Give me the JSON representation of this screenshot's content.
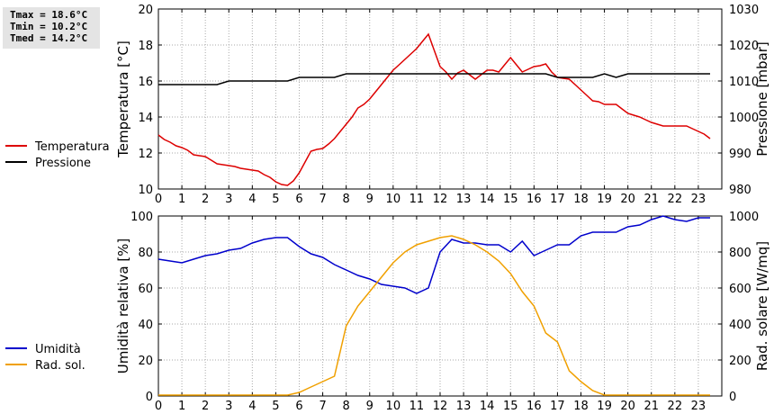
{
  "stats": {
    "tmax": "Tmax = 18.6°C",
    "tmin": "Tmin = 10.2°C",
    "tmed": "Tmed = 14.2°C"
  },
  "chart_data": [
    {
      "type": "line",
      "xlabel": "",
      "ylabel": "Temperatura [°C]",
      "y2label": "Pressione [mbar]",
      "xlim": [
        0,
        24
      ],
      "ylim": [
        10,
        20
      ],
      "y2lim": [
        980,
        1030
      ],
      "x_ticks": [
        0,
        1,
        2,
        3,
        4,
        5,
        6,
        7,
        8,
        9,
        10,
        11,
        12,
        13,
        14,
        15,
        16,
        17,
        18,
        19,
        20,
        21,
        22,
        23
      ],
      "y_ticks": [
        10,
        12,
        14,
        16,
        18,
        20
      ],
      "y2_ticks": [
        980,
        990,
        1000,
        1010,
        1020,
        1030
      ],
      "grid": true,
      "legend": "left",
      "series": [
        {
          "name": "Temperatura",
          "axis": "left",
          "color": "#dd0000",
          "x": [
            0,
            0.25,
            0.5,
            0.75,
            1,
            1.25,
            1.5,
            1.75,
            2,
            2.25,
            2.5,
            2.75,
            3,
            3.25,
            3.5,
            3.75,
            4,
            4.25,
            4.5,
            4.75,
            5,
            5.25,
            5.5,
            5.75,
            6,
            6.25,
            6.5,
            6.75,
            7,
            7.25,
            7.5,
            7.75,
            8,
            8.25,
            8.5,
            8.75,
            9,
            9.25,
            9.5,
            9.75,
            10,
            10.25,
            10.5,
            10.75,
            11,
            11.25,
            11.5,
            11.75,
            12,
            12.25,
            12.5,
            12.75,
            13,
            13.25,
            13.5,
            13.75,
            14,
            14.25,
            14.5,
            14.75,
            15,
            15.25,
            15.5,
            15.75,
            16,
            16.25,
            16.5,
            16.75,
            17,
            17.25,
            17.5,
            17.75,
            18,
            18.25,
            18.5,
            18.75,
            19,
            19.25,
            19.5,
            19.75,
            20,
            20.25,
            20.5,
            20.75,
            21,
            21.25,
            21.5,
            21.75,
            22,
            22.25,
            22.5,
            22.75,
            23,
            23.25,
            23.5
          ],
          "y": [
            13.0,
            12.75,
            12.6,
            12.4,
            12.3,
            12.15,
            11.9,
            11.85,
            11.8,
            11.6,
            11.4,
            11.35,
            11.3,
            11.25,
            11.15,
            11.1,
            11.05,
            11.0,
            10.8,
            10.65,
            10.4,
            10.25,
            10.2,
            10.45,
            10.9,
            11.5,
            12.1,
            12.2,
            12.25,
            12.5,
            12.8,
            13.2,
            13.6,
            14.0,
            14.5,
            14.7,
            15.0,
            15.4,
            15.8,
            16.2,
            16.6,
            16.9,
            17.2,
            17.5,
            17.8,
            18.2,
            18.6,
            17.7,
            16.8,
            16.5,
            16.1,
            16.45,
            16.6,
            16.35,
            16.1,
            16.35,
            16.6,
            16.6,
            16.5,
            16.9,
            17.3,
            16.9,
            16.5,
            16.65,
            16.8,
            16.85,
            16.95,
            16.5,
            16.2,
            16.15,
            16.1,
            15.8,
            15.5,
            15.2,
            14.9,
            14.85,
            14.7,
            14.7,
            14.7,
            14.45,
            14.2,
            14.1,
            14.0,
            13.85,
            13.7,
            13.6,
            13.5,
            13.5,
            13.5,
            13.5,
            13.5,
            13.35,
            13.2,
            13.05,
            12.8
          ],
          "x_note": ""
        },
        {
          "name": "Pressione",
          "axis": "right",
          "color": "#000000",
          "x": [
            0,
            0.5,
            1,
            1.5,
            2,
            2.5,
            3,
            3.5,
            4,
            4.5,
            5,
            5.5,
            6,
            6.5,
            7,
            7.5,
            8,
            8.5,
            9,
            9.5,
            10,
            10.5,
            11,
            11.5,
            12,
            12.5,
            13,
            13.5,
            14,
            14.5,
            15,
            15.5,
            16,
            16.5,
            17,
            17.5,
            18,
            18.5,
            19,
            19.5,
            20,
            20.5,
            21,
            21.5,
            22,
            22.5,
            23,
            23.5
          ],
          "y": [
            1009,
            1009,
            1009,
            1009,
            1009,
            1009,
            1010,
            1010,
            1010,
            1010,
            1010,
            1010,
            1011,
            1011,
            1011,
            1011,
            1012,
            1012,
            1012,
            1012,
            1012,
            1012,
            1012,
            1012,
            1012,
            1012,
            1012,
            1012,
            1012,
            1012,
            1012,
            1012,
            1012,
            1012,
            1011,
            1011,
            1011,
            1011,
            1012,
            1011,
            1012,
            1012,
            1012,
            1012,
            1012,
            1012,
            1012,
            1012
          ]
        }
      ]
    },
    {
      "type": "line",
      "xlabel": "",
      "ylabel": "Umidità relativa [%]",
      "y2label": "Rad. solare [W/mq]",
      "xlim": [
        0,
        24
      ],
      "ylim": [
        0,
        100
      ],
      "y2lim": [
        0,
        1000
      ],
      "x_ticks": [
        0,
        1,
        2,
        3,
        4,
        5,
        6,
        7,
        8,
        9,
        10,
        11,
        12,
        13,
        14,
        15,
        16,
        17,
        18,
        19,
        20,
        21,
        22,
        23
      ],
      "y_ticks": [
        0,
        20,
        40,
        60,
        80,
        100
      ],
      "y2_ticks": [
        0,
        200,
        400,
        600,
        800,
        1000
      ],
      "grid": true,
      "legend": "left",
      "series": [
        {
          "name": "Umidità",
          "axis": "left",
          "color": "#0000cc",
          "x": [
            0,
            0.5,
            1,
            1.5,
            2,
            2.5,
            3,
            3.5,
            4,
            4.5,
            5,
            5.5,
            6,
            6.5,
            7,
            7.5,
            8,
            8.5,
            9,
            9.5,
            10,
            10.5,
            11,
            11.5,
            12,
            12.5,
            13,
            13.5,
            14,
            14.5,
            15,
            15.5,
            16,
            16.5,
            17,
            17.5,
            18,
            18.5,
            19,
            19.5,
            20,
            20.5,
            21,
            21.5,
            22,
            22.5,
            23,
            23.5
          ],
          "y": [
            76,
            75,
            74,
            76,
            78,
            79,
            81,
            82,
            85,
            87,
            88,
            88,
            83,
            79,
            77,
            73,
            70,
            67,
            65,
            62,
            61,
            60,
            57,
            60,
            80,
            87,
            85,
            85,
            84,
            84,
            80,
            86,
            78,
            81,
            84,
            84,
            89,
            91,
            91,
            91,
            94,
            95,
            98,
            100,
            98,
            97,
            99,
            99
          ]
        },
        {
          "name": "Rad. sol.",
          "axis": "right",
          "color": "#f0a000",
          "x": [
            0,
            0.5,
            1,
            1.5,
            2,
            2.5,
            3,
            3.5,
            4,
            4.5,
            5,
            5.5,
            6,
            6.5,
            7,
            7.5,
            8,
            8.5,
            9,
            9.5,
            10,
            10.5,
            11,
            11.5,
            12,
            12.5,
            13,
            13.5,
            14,
            14.5,
            15,
            15.5,
            16,
            16.5,
            17,
            17.5,
            18,
            18.5,
            19,
            19.5,
            20,
            20.5,
            21,
            21.5,
            22,
            22.5,
            23,
            23.5
          ],
          "y": [
            5,
            5,
            5,
            5,
            5,
            5,
            5,
            5,
            5,
            5,
            5,
            5,
            20,
            50,
            80,
            110,
            390,
            500,
            580,
            660,
            740,
            800,
            840,
            860,
            880,
            890,
            870,
            840,
            800,
            750,
            680,
            580,
            500,
            350,
            300,
            140,
            80,
            30,
            5,
            5,
            5,
            5,
            5,
            5,
            5,
            5,
            5,
            5
          ]
        }
      ]
    }
  ]
}
